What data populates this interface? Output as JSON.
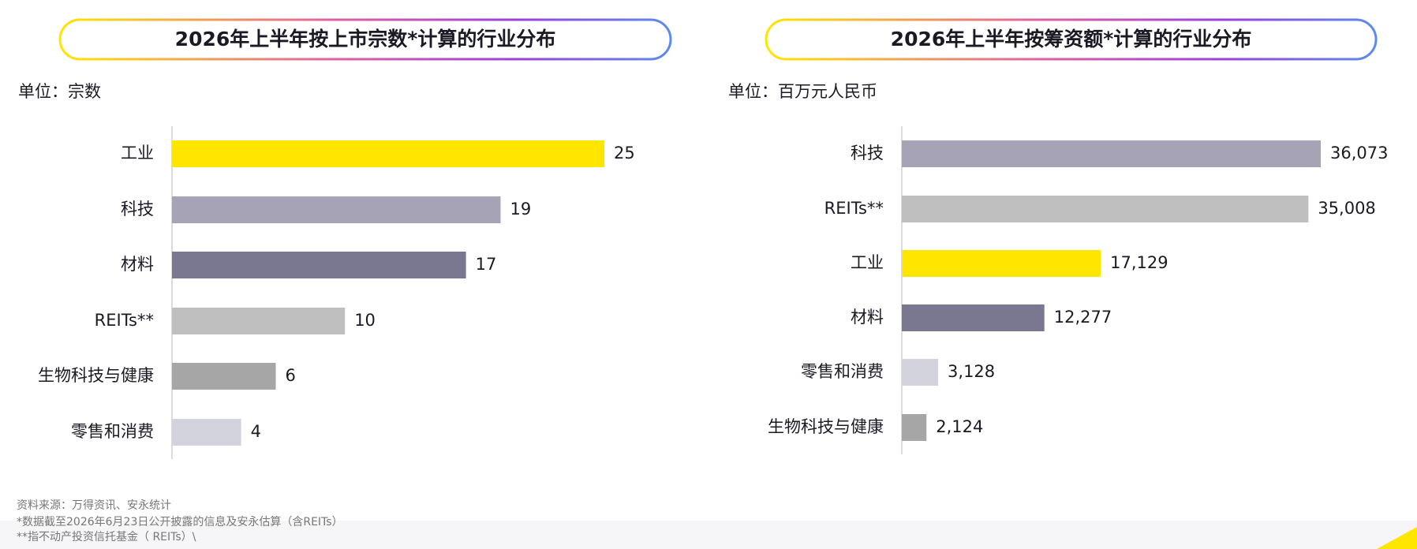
{
  "chart_data": [
    {
      "type": "bar",
      "orientation": "horizontal",
      "title": "2026年上半年按上市宗数*计算的行业分布",
      "unit": "单位：宗数",
      "categories": [
        "工业",
        "科技",
        "材料",
        "REITs**",
        "生物科技与健康",
        "零售和消费"
      ],
      "values": [
        25,
        19,
        17,
        10,
        6,
        4
      ],
      "colors": [
        "#FFE600",
        "#A5A3B5",
        "#7A7890",
        "#BFBFBF",
        "#A6A6A6",
        "#D3D3DD"
      ]
    },
    {
      "type": "bar",
      "orientation": "horizontal",
      "title": "2026年上半年按筹资额*计算的行业分布",
      "unit": "单位：百万元人民币",
      "categories": [
        "科技",
        "REITs**",
        "工业",
        "材料",
        "零售和消费",
        "生物科技与健康"
      ],
      "values": [
        36073,
        35008,
        17129,
        12277,
        3128,
        2124
      ],
      "value_labels": [
        "36,073",
        "35,008",
        "17,129",
        "12,277",
        "3,128",
        "2,124"
      ],
      "colors": [
        "#A5A3B5",
        "#BFBFBF",
        "#FFE600",
        "#7A7890",
        "#D3D3DD",
        "#A6A6A6"
      ]
    }
  ],
  "notes": [
    "资料来源：万得资讯、安永统计",
    "*数据截至2026年6月23日公开披露的信息及安永估算（含REITs）",
    "**指不动产投资信托基金（ REITs）\\"
  ]
}
